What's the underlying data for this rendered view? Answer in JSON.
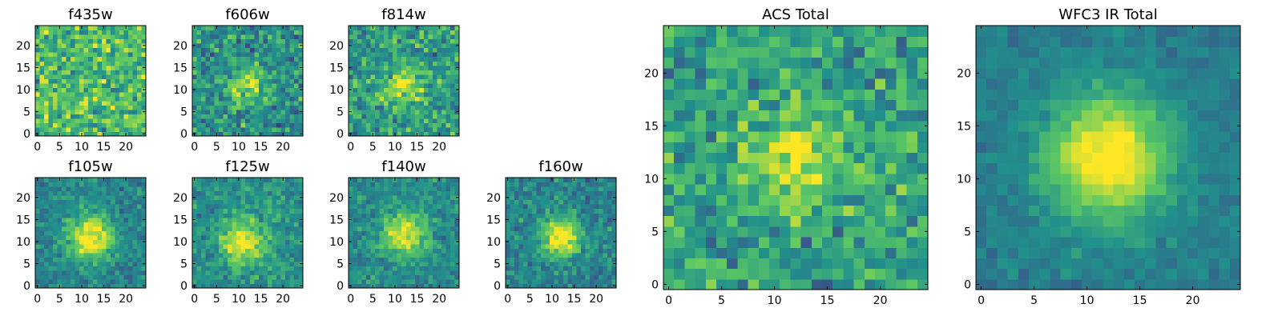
{
  "figure": {
    "colormap": "viridis",
    "colormap_stops": [
      "#440154",
      "#3b528b",
      "#21918c",
      "#5ec962",
      "#fde725"
    ]
  },
  "chart_data": [
    {
      "id": "f435w",
      "type": "heatmap",
      "title": "f435w",
      "grid_size": 25,
      "xlim": [
        0,
        24
      ],
      "ylim": [
        0,
        24
      ],
      "xticks": [
        "0",
        "5",
        "10",
        "15",
        "20"
      ],
      "yticks": [
        "0",
        "5",
        "10",
        "15",
        "20"
      ],
      "center": [
        12,
        12
      ],
      "peak": 0.0,
      "sigma": 4,
      "noise": 0.85,
      "base": 0.68,
      "seed": 11
    },
    {
      "id": "f606w",
      "type": "heatmap",
      "title": "f606w",
      "grid_size": 25,
      "xlim": [
        0,
        24
      ],
      "ylim": [
        0,
        24
      ],
      "xticks": [
        "0",
        "5",
        "10",
        "15",
        "20"
      ],
      "yticks": [
        "0",
        "5",
        "10",
        "15",
        "20"
      ],
      "center": [
        12,
        11
      ],
      "peak": 0.35,
      "sigma": 3,
      "noise": 0.75,
      "base": 0.5,
      "seed": 23
    },
    {
      "id": "f814w",
      "type": "heatmap",
      "title": "f814w",
      "grid_size": 25,
      "xlim": [
        0,
        24
      ],
      "ylim": [
        0,
        24
      ],
      "xticks": [
        "0",
        "5",
        "10",
        "15",
        "20"
      ],
      "yticks": [
        "0",
        "5",
        "10",
        "15",
        "20"
      ],
      "center": [
        12,
        11
      ],
      "peak": 0.35,
      "sigma": 3,
      "noise": 0.75,
      "base": 0.55,
      "seed": 37
    },
    {
      "id": "f105w",
      "type": "heatmap",
      "title": "f105w",
      "grid_size": 25,
      "xlim": [
        0,
        24
      ],
      "ylim": [
        0,
        24
      ],
      "xticks": [
        "0",
        "5",
        "10",
        "15",
        "20"
      ],
      "yticks": [
        "0",
        "5",
        "10",
        "15",
        "20"
      ],
      "center": [
        12,
        11
      ],
      "peak": 0.6,
      "sigma": 3.5,
      "noise": 0.45,
      "base": 0.45,
      "seed": 41
    },
    {
      "id": "f125w",
      "type": "heatmap",
      "title": "f125w",
      "grid_size": 25,
      "xlim": [
        0,
        24
      ],
      "ylim": [
        0,
        24
      ],
      "xticks": [
        "0",
        "5",
        "10",
        "15",
        "20"
      ],
      "yticks": [
        "0",
        "5",
        "10",
        "15",
        "20"
      ],
      "center": [
        11,
        10
      ],
      "peak": 0.5,
      "sigma": 3.5,
      "noise": 0.5,
      "base": 0.5,
      "seed": 53
    },
    {
      "id": "f140w",
      "type": "heatmap",
      "title": "f140w",
      "grid_size": 25,
      "xlim": [
        0,
        24
      ],
      "ylim": [
        0,
        24
      ],
      "xticks": [
        "0",
        "5",
        "10",
        "15",
        "20"
      ],
      "yticks": [
        "0",
        "5",
        "10",
        "15",
        "20"
      ],
      "center": [
        12,
        12
      ],
      "peak": 0.5,
      "sigma": 3.5,
      "noise": 0.45,
      "base": 0.48,
      "seed": 67
    },
    {
      "id": "f160w",
      "type": "heatmap",
      "title": "f160w",
      "grid_size": 25,
      "xlim": [
        0,
        24
      ],
      "ylim": [
        0,
        24
      ],
      "xticks": [
        "0",
        "5",
        "10",
        "15",
        "20"
      ],
      "yticks": [
        "0",
        "5",
        "10",
        "15",
        "20"
      ],
      "center": [
        12,
        11
      ],
      "peak": 0.6,
      "sigma": 3,
      "noise": 0.5,
      "base": 0.45,
      "seed": 79
    },
    {
      "id": "acs-total",
      "type": "heatmap",
      "title": "ACS Total",
      "grid_size": 25,
      "xlim": [
        0,
        24
      ],
      "ylim": [
        0,
        24
      ],
      "xticks": [
        "0",
        "5",
        "10",
        "15",
        "20"
      ],
      "yticks": [
        "0",
        "5",
        "10",
        "15",
        "20"
      ],
      "center": [
        12,
        12
      ],
      "peak": 0.35,
      "sigma": 3,
      "noise": 0.7,
      "base": 0.58,
      "seed": 83
    },
    {
      "id": "wfc3-ir-total",
      "type": "heatmap",
      "title": "WFC3 IR Total",
      "grid_size": 25,
      "xlim": [
        0,
        24
      ],
      "ylim": [
        0,
        24
      ],
      "xticks": [
        "0",
        "5",
        "10",
        "15",
        "20"
      ],
      "yticks": [
        "0",
        "5",
        "10",
        "15",
        "20"
      ],
      "center": [
        12,
        12
      ],
      "peak": 0.65,
      "sigma": 4,
      "noise": 0.25,
      "base": 0.42,
      "seed": 97
    }
  ]
}
